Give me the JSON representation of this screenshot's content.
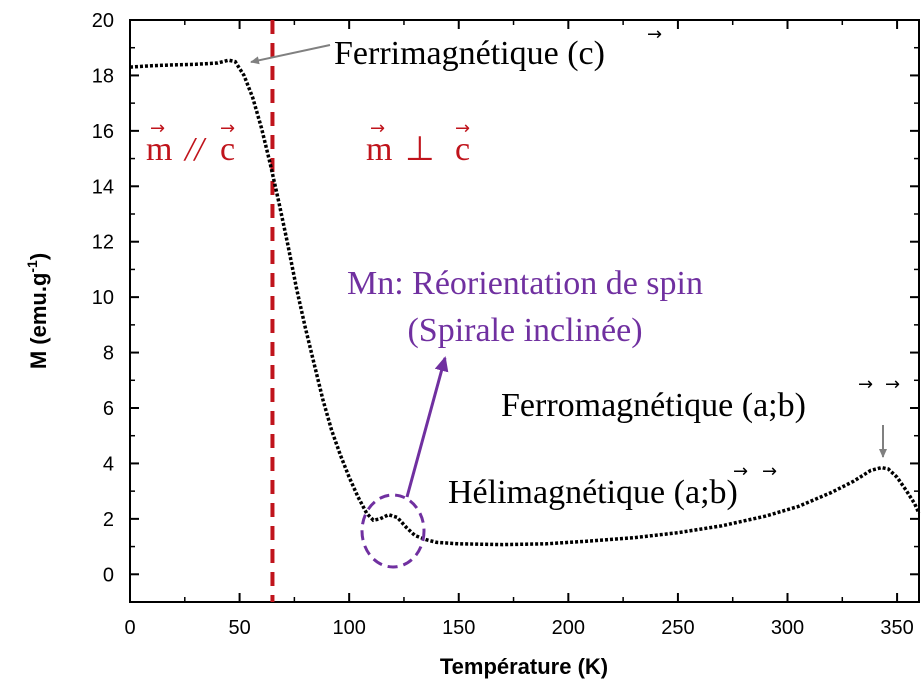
{
  "chart_data": {
    "type": "line",
    "xlabel": "Température (K)",
    "ylabel": "M (emu.g",
    "ylabel_sup": "-1",
    "ylabel_close": ")",
    "xlim": [
      0,
      360
    ],
    "ylim": [
      -1,
      20
    ],
    "xticks": [
      0,
      50,
      100,
      150,
      200,
      250,
      300,
      350
    ],
    "yticks": [
      0,
      2,
      4,
      6,
      8,
      10,
      12,
      14,
      16,
      18,
      20
    ],
    "grid": false,
    "series": [
      {
        "values_xy": [
          [
            0,
            18.3
          ],
          [
            10,
            18.35
          ],
          [
            20,
            18.38
          ],
          [
            30,
            18.4
          ],
          [
            40,
            18.45
          ],
          [
            45,
            18.55
          ],
          [
            48,
            18.5
          ],
          [
            52,
            18.0
          ],
          [
            56,
            17.2
          ],
          [
            60,
            16.1
          ],
          [
            64,
            14.8
          ],
          [
            68,
            13.4
          ],
          [
            72,
            11.9
          ],
          [
            76,
            10.3
          ],
          [
            80,
            8.9
          ],
          [
            84,
            7.6
          ],
          [
            88,
            6.3
          ],
          [
            92,
            5.2
          ],
          [
            96,
            4.3
          ],
          [
            100,
            3.5
          ],
          [
            104,
            2.8
          ],
          [
            108,
            2.2
          ],
          [
            111,
            1.95
          ],
          [
            114,
            2.0
          ],
          [
            118,
            2.15
          ],
          [
            122,
            2.05
          ],
          [
            126,
            1.7
          ],
          [
            130,
            1.4
          ],
          [
            135,
            1.25
          ],
          [
            140,
            1.15
          ],
          [
            150,
            1.1
          ],
          [
            170,
            1.07
          ],
          [
            190,
            1.1
          ],
          [
            210,
            1.2
          ],
          [
            230,
            1.32
          ],
          [
            250,
            1.5
          ],
          [
            270,
            1.75
          ],
          [
            290,
            2.1
          ],
          [
            305,
            2.45
          ],
          [
            320,
            2.95
          ],
          [
            330,
            3.35
          ],
          [
            338,
            3.75
          ],
          [
            343,
            3.85
          ],
          [
            346,
            3.8
          ],
          [
            350,
            3.5
          ],
          [
            354,
            3.05
          ],
          [
            358,
            2.55
          ],
          [
            361,
            2.2
          ]
        ]
      }
    ],
    "reference_line": {
      "x": 65,
      "style": "dashed",
      "color": "#c0141c"
    },
    "annotations": {
      "ferri": {
        "text": "Ferrimagnétique (",
        "vec": "c",
        "close": ")"
      },
      "m_par": {
        "m": "m",
        "sym": "//",
        "c": "c"
      },
      "m_perp": {
        "m": "m",
        "sym": "⊥",
        "c": "c"
      },
      "reorient_1": "Mn: Réorientation de spin",
      "reorient_2": "(Spirale inclinée)",
      "ferro": {
        "text": "Ferromagnétique (",
        "a": "a",
        "sep": ";",
        "b": "b",
        "close": ")"
      },
      "heli": {
        "text": "Hélimagnétique (",
        "a": "a",
        "sep": ";",
        "b": "b",
        "close": ")"
      }
    },
    "colors": {
      "curve": "#000000",
      "dashed": "#c0141c",
      "red_text": "#c0141c",
      "purple": "#7030a0",
      "arrow_gray": "#808080"
    }
  }
}
